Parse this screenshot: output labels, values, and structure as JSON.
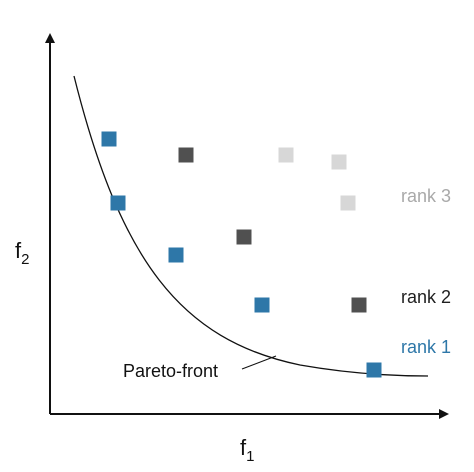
{
  "axes": {
    "x_label_main": "f",
    "x_label_sub": "1",
    "y_label_main": "f",
    "y_label_sub": "2"
  },
  "front": {
    "label": "Pareto-front"
  },
  "ranks": [
    {
      "label": "rank 1",
      "color": "#2e77a8"
    },
    {
      "label": "rank 2",
      "color": "#1f1f1f"
    },
    {
      "label": "rank 3",
      "color": "#a9a9a9"
    }
  ],
  "points": {
    "rank1": [
      [
        109,
        139
      ],
      [
        118,
        203
      ],
      [
        176,
        255
      ],
      [
        262,
        305
      ],
      [
        374,
        370
      ]
    ],
    "rank2": [
      [
        186,
        155
      ],
      [
        244,
        237
      ],
      [
        359,
        305
      ]
    ],
    "rank3": [
      [
        286,
        155
      ],
      [
        339,
        162
      ],
      [
        348,
        203
      ]
    ]
  },
  "point_colors": {
    "rank1": "#2e77a8",
    "rank2": "#505050",
    "rank3": "#d7d7d7"
  }
}
